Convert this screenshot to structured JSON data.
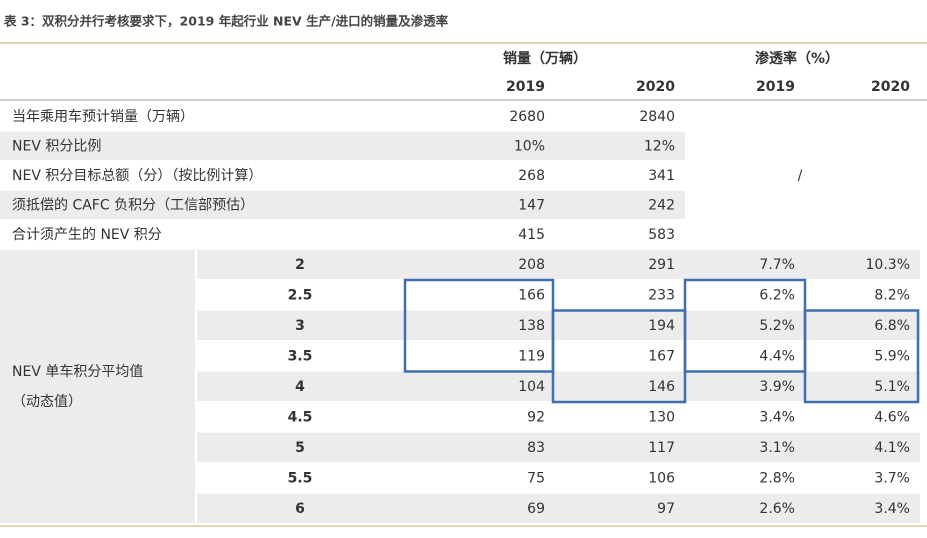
{
  "title": "表 3：双积分并行考核要求下，2019 年起行业 NEV 生产/进口的销量及渗透率",
  "table": {
    "header": {
      "sales": "销量（万辆）",
      "penetration": "渗透率（%）",
      "years": [
        "2019",
        "2020",
        "2019",
        "2020"
      ]
    },
    "rows": [
      {
        "label": "当年乘用车预计销量（万辆）",
        "cells": [
          "2680",
          "2840"
        ]
      },
      {
        "label": "NEV 积分比例",
        "cells": [
          "10%",
          "12%"
        ]
      },
      {
        "label": "NEV 积分目标总额（分）（按比例计算）",
        "cells": [
          "268",
          "341"
        ]
      },
      {
        "label": "须抵偿的 CAFC 负积分（工信部预估）",
        "cells": [
          "147",
          "242"
        ]
      },
      {
        "label": "合计须产生的 NEV 积分",
        "cells": [
          "415",
          "583"
        ]
      }
    ],
    "slash": "/",
    "group": {
      "label": [
        "NEV 单车积分平均值",
        "（动态值）"
      ],
      "rows": [
        [
          "2",
          "208",
          "291",
          "7.7%",
          "10.3%"
        ],
        [
          "2.5",
          "166",
          "233",
          "6.2%",
          "8.2%"
        ],
        [
          "3",
          "138",
          "194",
          "5.2%",
          "6.8%"
        ],
        [
          "3.5",
          "119",
          "167",
          "4.4%",
          "5.9%"
        ],
        [
          "4",
          "104",
          "146",
          "3.9%",
          "5.1%"
        ],
        [
          "4.5",
          "92",
          "130",
          "3.4%",
          "4.6%"
        ],
        [
          "5",
          "83",
          "117",
          "3.1%",
          "4.1%"
        ],
        [
          "5.5",
          "75",
          "106",
          "2.8%",
          "3.7%"
        ],
        [
          "6",
          "69",
          "97",
          "2.6%",
          "3.4%"
        ]
      ]
    }
  }
}
